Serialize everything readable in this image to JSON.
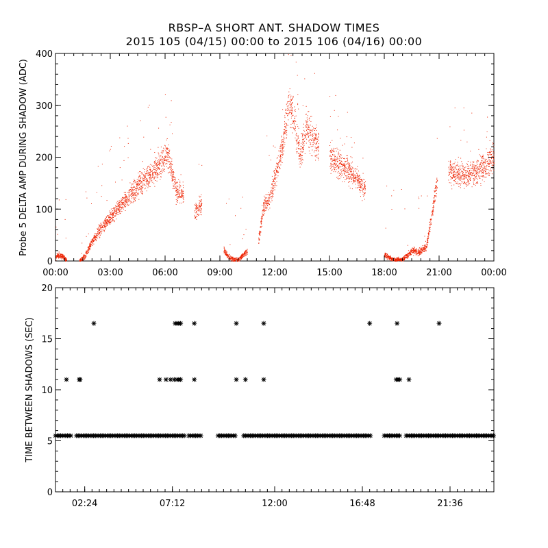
{
  "title": {
    "line1": "RBSP–A SHORT ANT. SHADOW TIMES",
    "line2": "2015 105 (04/15) 00:00 to 2015 106 (04/16) 00:00"
  },
  "colors": {
    "top_series": "#ee2200",
    "bottom_series": "#000000"
  },
  "chart_data": [
    {
      "type": "scatter",
      "title": "",
      "xlabel": "",
      "ylabel": "Probe 5 DELTA AMP DURING SHADOW (ADC)",
      "x_unit": "hours",
      "xlim": [
        0,
        24
      ],
      "ylim": [
        0,
        400
      ],
      "x_ticks": [
        {
          "v": 0,
          "label": "00:00"
        },
        {
          "v": 3,
          "label": "03:00"
        },
        {
          "v": 6,
          "label": "06:00"
        },
        {
          "v": 9,
          "label": "09:00"
        },
        {
          "v": 12,
          "label": "12:00"
        },
        {
          "v": 15,
          "label": "15:00"
        },
        {
          "v": 18,
          "label": "18:00"
        },
        {
          "v": 21,
          "label": "21:00"
        },
        {
          "v": 24,
          "label": "00:00"
        }
      ],
      "y_ticks": [
        {
          "v": 0,
          "label": "0"
        },
        {
          "v": 100,
          "label": "100"
        },
        {
          "v": 200,
          "label": "200"
        },
        {
          "v": 300,
          "label": "300"
        },
        {
          "v": 400,
          "label": "400"
        }
      ],
      "grid": false,
      "trend_points": [
        [
          0.0,
          8
        ],
        [
          0.2,
          12
        ],
        [
          0.4,
          8
        ],
        [
          0.6,
          2
        ],
        [
          1.3,
          0
        ],
        [
          1.6,
          10
        ],
        [
          2.0,
          38
        ],
        [
          2.5,
          65
        ],
        [
          3.0,
          85
        ],
        [
          3.5,
          105
        ],
        [
          4.0,
          125
        ],
        [
          4.5,
          145
        ],
        [
          5.0,
          160
        ],
        [
          5.5,
          178
        ],
        [
          5.9,
          195
        ],
        [
          6.1,
          210
        ],
        [
          6.6,
          135
        ],
        [
          7.0,
          130
        ],
        [
          7.6,
          95
        ],
        [
          8.0,
          110
        ],
        [
          9.2,
          20
        ],
        [
          9.5,
          8
        ],
        [
          9.8,
          2
        ],
        [
          10.0,
          3
        ],
        [
          10.5,
          20
        ],
        [
          11.1,
          40
        ],
        [
          11.4,
          110
        ],
        [
          11.7,
          120
        ],
        [
          12.0,
          160
        ],
        [
          12.4,
          220
        ],
        [
          12.8,
          310
        ],
        [
          13.1,
          260
        ],
        [
          13.4,
          200
        ],
        [
          13.7,
          260
        ],
        [
          14.0,
          240
        ],
        [
          14.4,
          220
        ],
        [
          15.0,
          200
        ],
        [
          15.5,
          185
        ],
        [
          16.0,
          175
        ],
        [
          16.5,
          160
        ],
        [
          16.95,
          135
        ],
        [
          18.0,
          12
        ],
        [
          18.5,
          3
        ],
        [
          19.0,
          3
        ],
        [
          19.5,
          20
        ],
        [
          19.9,
          18
        ],
        [
          20.3,
          30
        ],
        [
          20.6,
          90
        ],
        [
          20.9,
          160
        ],
        [
          21.5,
          170
        ],
        [
          22.0,
          170
        ],
        [
          22.5,
          165
        ],
        [
          23.0,
          172
        ],
        [
          23.5,
          185
        ],
        [
          24.0,
          200
        ]
      ]
    },
    {
      "type": "scatter",
      "title": "",
      "xlabel": "",
      "ylabel": "TIME BETWEEN SHADOWS (SEC)",
      "x_unit": "hours",
      "xlim": [
        0,
        24
      ],
      "ylim": [
        0,
        20
      ],
      "x_ticks": [
        {
          "v": 1.6,
          "label": "02:24"
        },
        {
          "v": 6.4,
          "label": "07:12"
        },
        {
          "v": 12.0,
          "label": "12:00"
        },
        {
          "v": 16.8,
          "label": "16:48"
        },
        {
          "v": 21.6,
          "label": "21:36"
        }
      ],
      "y_ticks": [
        {
          "v": 0,
          "label": "0"
        },
        {
          "v": 5,
          "label": "5"
        },
        {
          "v": 10,
          "label": "10"
        },
        {
          "v": 15,
          "label": "15"
        },
        {
          "v": 20,
          "label": "20"
        }
      ],
      "grid": false,
      "baseline_value": 5.5,
      "baseline_segments": [
        [
          0.0,
          0.85
        ],
        [
          1.15,
          7.1
        ],
        [
          7.3,
          8.0
        ],
        [
          8.9,
          9.9
        ],
        [
          10.3,
          17.3
        ],
        [
          18.0,
          18.9
        ],
        [
          19.2,
          24.0
        ]
      ],
      "points": [
        {
          "x": 0.6,
          "y": 11
        },
        {
          "x": 1.3,
          "y": 11
        },
        {
          "x": 1.35,
          "y": 11
        },
        {
          "x": 2.1,
          "y": 16.5
        },
        {
          "x": 5.7,
          "y": 11
        },
        {
          "x": 6.05,
          "y": 11
        },
        {
          "x": 6.3,
          "y": 11
        },
        {
          "x": 6.5,
          "y": 11
        },
        {
          "x": 6.65,
          "y": 11
        },
        {
          "x": 6.75,
          "y": 11
        },
        {
          "x": 6.85,
          "y": 11
        },
        {
          "x": 6.55,
          "y": 16.5
        },
        {
          "x": 6.65,
          "y": 16.5
        },
        {
          "x": 6.75,
          "y": 16.5
        },
        {
          "x": 6.85,
          "y": 16.5
        },
        {
          "x": 7.6,
          "y": 16.5
        },
        {
          "x": 7.6,
          "y": 11
        },
        {
          "x": 9.9,
          "y": 16.5
        },
        {
          "x": 9.9,
          "y": 11
        },
        {
          "x": 10.4,
          "y": 11
        },
        {
          "x": 11.4,
          "y": 16.5
        },
        {
          "x": 11.4,
          "y": 11
        },
        {
          "x": 17.2,
          "y": 16.5
        },
        {
          "x": 18.7,
          "y": 16.5
        },
        {
          "x": 18.65,
          "y": 11
        },
        {
          "x": 18.75,
          "y": 11
        },
        {
          "x": 18.85,
          "y": 11
        },
        {
          "x": 19.35,
          "y": 11
        },
        {
          "x": 21.0,
          "y": 16.5
        }
      ]
    }
  ]
}
